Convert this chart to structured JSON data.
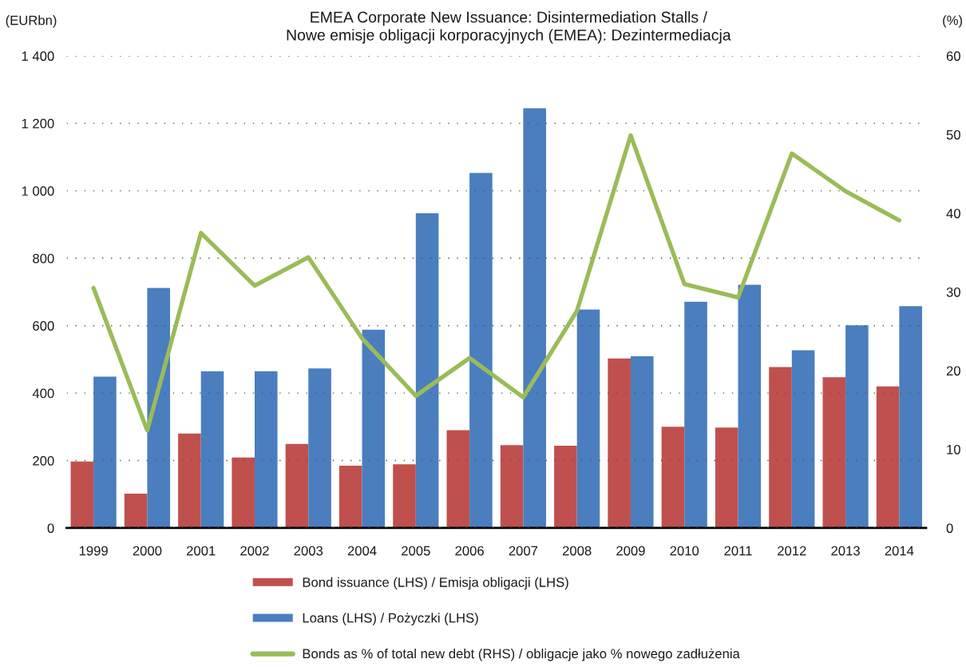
{
  "chart_data": {
    "type": "bar",
    "title": "EMEA Corporate New Issuance: Disintermediation Stalls /\nNowe emisje obligacji korporacyjnych (EMEA): Dezintermediacja",
    "ylabel": "(EURbn)",
    "y2label": "(%)",
    "categories": [
      "1999",
      "2000",
      "2001",
      "2002",
      "2003",
      "2004",
      "2005",
      "2006",
      "2007",
      "2008",
      "2009",
      "2010",
      "2011",
      "2012",
      "2013",
      "2014"
    ],
    "series": [
      {
        "name": "Bond issuance (LHS) / Emisja obligacji (LHS)",
        "color": "#c0504d",
        "values": [
          197,
          102,
          280,
          209,
          249,
          185,
          189,
          290,
          246,
          244,
          503,
          300,
          298,
          477,
          447,
          420
        ]
      },
      {
        "name": "Loans (LHS) / Pożyczki (LHS)",
        "color": "#4a7ebf",
        "values": [
          449,
          712,
          465,
          465,
          473,
          588,
          933,
          1053,
          1245,
          648,
          509,
          671,
          721,
          527,
          601,
          658
        ]
      },
      {
        "name": "Bonds as % of total new debt (RHS) / obligacje jako % nowego zadłużenia",
        "type": "line",
        "axis": "y2",
        "color": "#9bbb59",
        "values": [
          30.5,
          12.4,
          37.5,
          30.8,
          34.4,
          24.1,
          16.8,
          21.6,
          16.6,
          27.6,
          49.9,
          31.0,
          29.3,
          47.6,
          42.8,
          39.1
        ]
      }
    ],
    "ylim": [
      0,
      1400
    ],
    "yticks": [
      0,
      200,
      400,
      600,
      800,
      {
        "value": 1000,
        "label": "1 000"
      },
      {
        "value": 1200,
        "label": "1 200"
      },
      {
        "value": 1400,
        "label": "1 400"
      }
    ],
    "y2lim": [
      0,
      60
    ],
    "y2ticks": [
      0,
      10,
      20,
      30,
      40,
      50,
      60
    ],
    "grid": "y",
    "legend": "bottom"
  }
}
